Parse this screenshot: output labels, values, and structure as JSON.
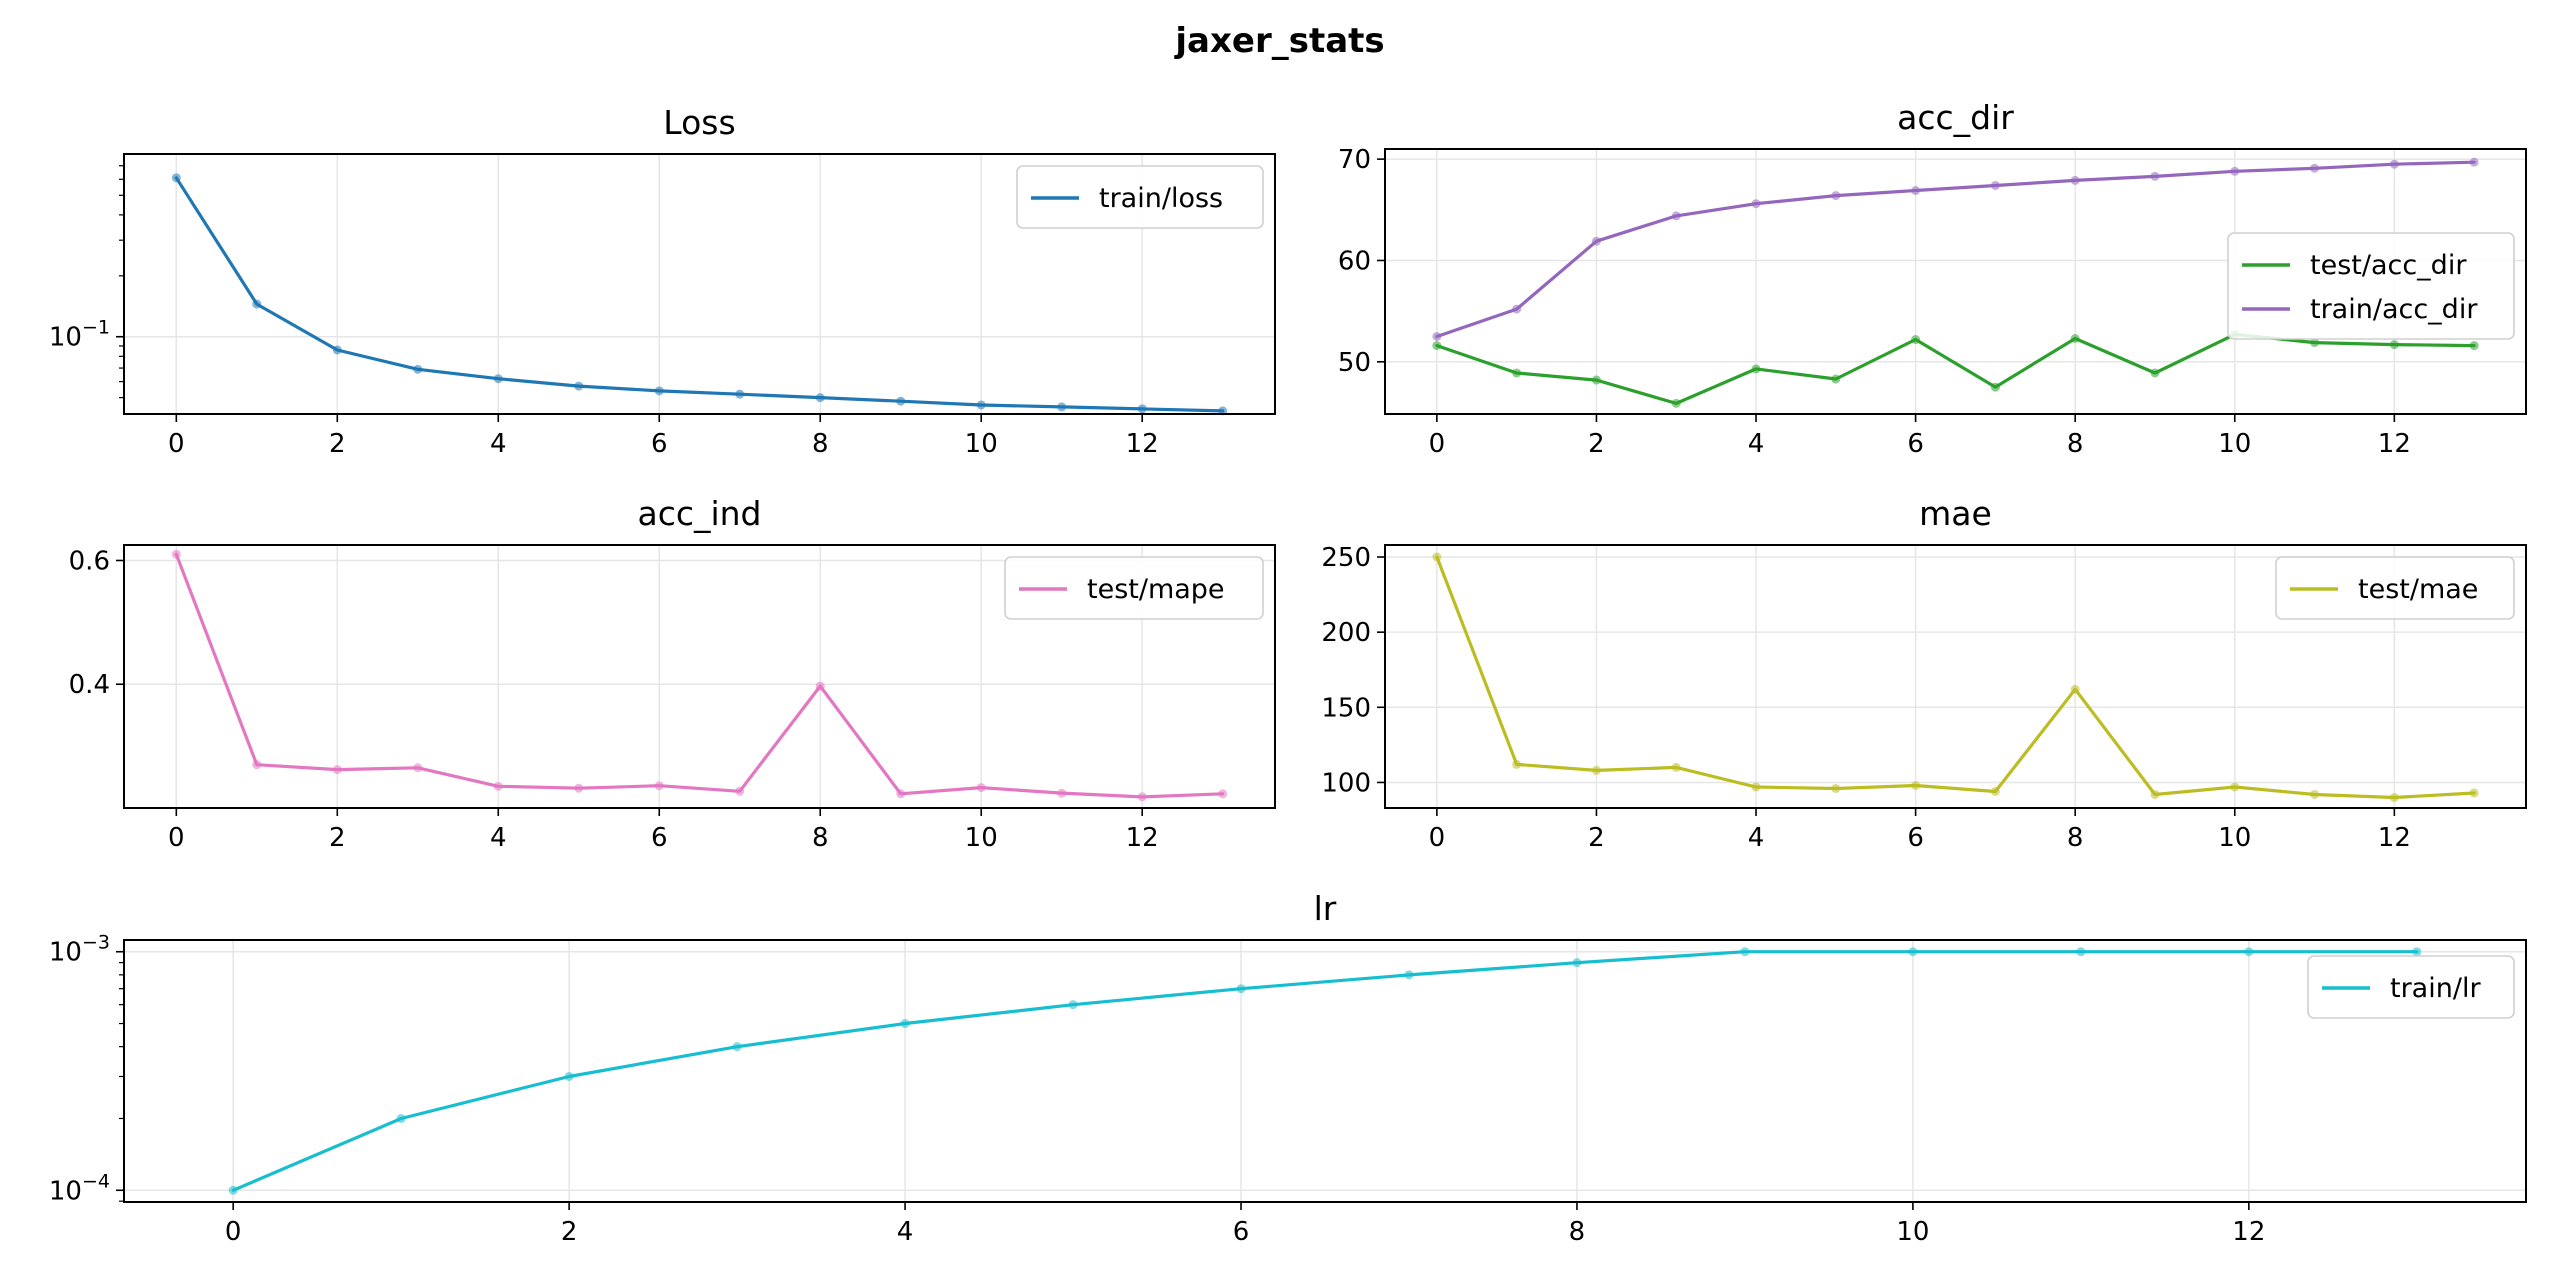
{
  "figure": {
    "title": "jaxer_stats"
  },
  "chart_data": [
    {
      "id": "loss",
      "type": "line",
      "title": "Loss",
      "xlabel": "",
      "ylabel": "",
      "yscale": "log",
      "x": [
        0,
        1,
        2,
        3,
        4,
        5,
        6,
        7,
        8,
        9,
        10,
        11,
        12,
        13
      ],
      "xlim": [
        -0.65,
        13.65
      ],
      "xticks": [
        0,
        2,
        4,
        6,
        8,
        10,
        12
      ],
      "ylim": [
        0.0415,
        0.8
      ],
      "yticks": [
        {
          "value": 0.1,
          "base": "10",
          "exp": "−1"
        }
      ],
      "grid": true,
      "legend": "top-right",
      "series": [
        {
          "name": "train/loss",
          "color": "#1f77b4",
          "values": [
            0.61,
            0.145,
            0.086,
            0.069,
            0.062,
            0.057,
            0.054,
            0.052,
            0.05,
            0.048,
            0.046,
            0.045,
            0.044,
            0.043
          ]
        }
      ]
    },
    {
      "id": "acc_dir",
      "type": "line",
      "title": "acc_dir",
      "xlabel": "",
      "ylabel": "",
      "yscale": "linear",
      "x": [
        0,
        1,
        2,
        3,
        4,
        5,
        6,
        7,
        8,
        9,
        10,
        11,
        12,
        13
      ],
      "xlim": [
        -0.65,
        13.65
      ],
      "xticks": [
        0,
        2,
        4,
        6,
        8,
        10,
        12
      ],
      "ylim": [
        44.85,
        71.0
      ],
      "yticks": [
        {
          "value": 50,
          "label": "50"
        },
        {
          "value": 60,
          "label": "60"
        },
        {
          "value": 70,
          "label": "70"
        }
      ],
      "grid": true,
      "legend": "center-right",
      "series": [
        {
          "name": "test/acc_dir",
          "color": "#2ca02c",
          "values": [
            51.6,
            48.9,
            48.2,
            45.9,
            49.3,
            48.3,
            52.2,
            47.5,
            52.3,
            48.9,
            52.7,
            51.9,
            51.7,
            51.6
          ]
        },
        {
          "name": "train/acc_dir",
          "color": "#9467bd",
          "values": [
            52.5,
            55.2,
            61.9,
            64.4,
            65.6,
            66.4,
            66.9,
            67.4,
            67.9,
            68.3,
            68.8,
            69.1,
            69.5,
            69.7
          ]
        }
      ]
    },
    {
      "id": "acc_ind",
      "type": "line",
      "title": "acc_ind",
      "xlabel": "",
      "ylabel": "",
      "yscale": "linear",
      "x": [
        0,
        1,
        2,
        3,
        4,
        5,
        6,
        7,
        8,
        9,
        10,
        11,
        12,
        13
      ],
      "xlim": [
        -0.65,
        13.65
      ],
      "xticks": [
        0,
        2,
        4,
        6,
        8,
        10,
        12
      ],
      "ylim": [
        0.2,
        0.625
      ],
      "yticks": [
        {
          "value": 0.4,
          "label": "0.4"
        },
        {
          "value": 0.6,
          "label": "0.6"
        }
      ],
      "grid": true,
      "legend": "top-right",
      "series": [
        {
          "name": "test/mape",
          "color": "#e377c2",
          "values": [
            0.61,
            0.27,
            0.262,
            0.265,
            0.235,
            0.232,
            0.236,
            0.227,
            0.397,
            0.223,
            0.233,
            0.224,
            0.218,
            0.223
          ]
        }
      ]
    },
    {
      "id": "mae",
      "type": "line",
      "title": "mae",
      "xlabel": "",
      "ylabel": "",
      "yscale": "linear",
      "x": [
        0,
        1,
        2,
        3,
        4,
        5,
        6,
        7,
        8,
        9,
        10,
        11,
        12,
        13
      ],
      "xlim": [
        -0.65,
        13.65
      ],
      "xticks": [
        0,
        2,
        4,
        6,
        8,
        10,
        12
      ],
      "ylim": [
        83,
        258
      ],
      "yticks": [
        {
          "value": 100,
          "label": "100"
        },
        {
          "value": 150,
          "label": "150"
        },
        {
          "value": 200,
          "label": "200"
        },
        {
          "value": 250,
          "label": "250"
        }
      ],
      "grid": true,
      "legend": "top-right",
      "series": [
        {
          "name": "test/mae",
          "color": "#bcbd22",
          "values": [
            250,
            112,
            108,
            110,
            97,
            96,
            98,
            94,
            162,
            92,
            97,
            92,
            90,
            93
          ]
        }
      ]
    },
    {
      "id": "lr",
      "type": "line",
      "title": "lr",
      "xlabel": "",
      "ylabel": "",
      "yscale": "log",
      "x": [
        0,
        1,
        2,
        3,
        4,
        5,
        6,
        7,
        8,
        9,
        10,
        11,
        12,
        13
      ],
      "xlim": [
        -0.65,
        13.65
      ],
      "xticks": [
        0,
        2,
        4,
        6,
        8,
        10,
        12
      ],
      "ylim": [
        8.93e-05,
        0.00112
      ],
      "yticks": [
        {
          "value": 0.0001,
          "base": "10",
          "exp": "−4"
        },
        {
          "value": 0.001,
          "base": "10",
          "exp": "−3"
        }
      ],
      "grid": true,
      "legend": "top-right",
      "series": [
        {
          "name": "train/lr",
          "color": "#17becf",
          "values": [
            0.0001,
            0.0002,
            0.0003,
            0.0004,
            0.0005,
            0.0006,
            0.0007,
            0.0008,
            0.0009,
            0.001,
            0.001,
            0.001,
            0.001,
            0.001
          ]
        }
      ]
    }
  ]
}
